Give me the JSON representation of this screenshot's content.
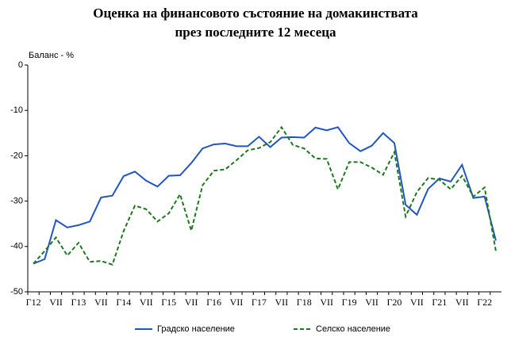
{
  "chart_data": {
    "type": "line",
    "title": [
      "Оценка на финансовото състояние на домакинствата",
      "през последните 12 месеца"
    ],
    "y_label": "Баланс - %",
    "categories": [
      "Г12",
      null,
      "VII",
      null,
      "Г13",
      null,
      "VII",
      null,
      "Г14",
      null,
      "VII",
      null,
      "Г15",
      null,
      "VII",
      null,
      "Г16",
      null,
      "VII",
      null,
      "Г17",
      null,
      "VII",
      null,
      "Г18",
      null,
      "VII",
      null,
      "Г19",
      null,
      "VII",
      null,
      "Г20",
      null,
      "VII",
      null,
      "Г21",
      null,
      "VII",
      null,
      "Г22",
      null
    ],
    "series": [
      {
        "name": "Градско население",
        "color": "#2255c4",
        "dashed": false,
        "values": [
          -43.8,
          -42.8,
          -34.2,
          -35.8,
          -35.3,
          -34.5,
          -29.2,
          -28.8,
          -24.5,
          -23.5,
          -25.5,
          -26.8,
          -24.4,
          -24.3,
          -21.6,
          -18.4,
          -17.5,
          -17.3,
          -17.9,
          -17.9,
          -15.8,
          -18.1,
          -16.0,
          -15.9,
          -16.0,
          -13.8,
          -14.4,
          -13.7,
          -17.2,
          -19.0,
          -17.8,
          -15.0,
          -17.2,
          -30.8,
          -33.0,
          -27.3,
          -25.0,
          -25.7,
          -22.0,
          -29.3,
          -29.0,
          -38.7
        ]
      },
      {
        "name": "Селско население",
        "color": "#1a7a1a",
        "dashed": true,
        "values": [
          -43.8,
          -41.0,
          -38.0,
          -42.0,
          -39.2,
          -43.4,
          -43.2,
          -44.0,
          -36.6,
          -31.0,
          -31.8,
          -34.5,
          -32.7,
          -28.5,
          -36.5,
          -26.5,
          -23.3,
          -23.0,
          -21.0,
          -18.8,
          -18.3,
          -17.0,
          -13.7,
          -17.6,
          -18.4,
          -20.6,
          -20.7,
          -27.4,
          -21.4,
          -21.4,
          -22.6,
          -24.2,
          -19.2,
          -33.4,
          -28.0,
          -24.9,
          -25.3,
          -27.4,
          -24.4,
          -29.0,
          -27.0,
          -41.0
        ]
      }
    ],
    "ylim": [
      -50,
      0
    ],
    "yticks": [
      0,
      -10,
      -20,
      -30,
      -40,
      -50
    ],
    "grid": false
  }
}
